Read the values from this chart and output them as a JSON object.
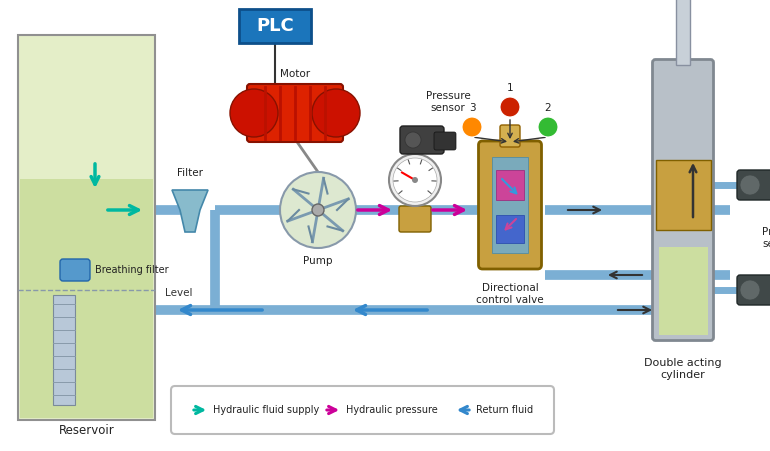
{
  "bg_color": "#ffffff",
  "colors": {
    "cyan": "#00B8A0",
    "magenta": "#CC0099",
    "blue_return": "#3388CC",
    "pipe": "#7BAFD4",
    "motor_red": "#CC2200",
    "gold": "#C8A040",
    "silver": "#A8B0B8",
    "lamp_blue": "#7799AA",
    "reservoir_fill": "#D8E8A8",
    "reservoir_border": "#888888"
  },
  "legend_items": [
    {
      "label": "Hydraulic fluid supply",
      "color": "#00B8A0",
      "dir": "right"
    },
    {
      "label": "Hydraulic pressure",
      "color": "#CC0099",
      "dir": "right"
    },
    {
      "label": "Return fluid",
      "color": "#3388CC",
      "dir": "left"
    }
  ],
  "fontsize": 7.5
}
